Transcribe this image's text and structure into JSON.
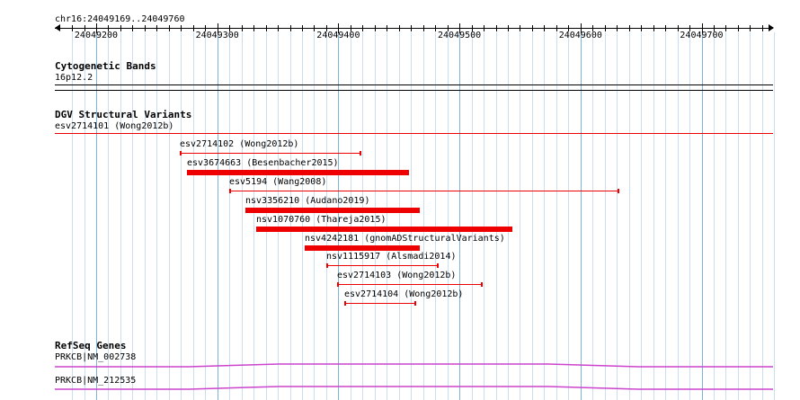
{
  "ruler": {
    "location": "chr16:24049169..24049760",
    "tick_labels": [
      "24049200",
      "24049300",
      "24049400",
      "24049500",
      "24049600",
      "24049700"
    ]
  },
  "cytobands": {
    "title": "Cytogenetic Bands",
    "label": "16p12.2"
  },
  "dgv": {
    "title": "DGV Structural Variants",
    "label": "esv2714101 (Wong2012b)",
    "color": "#ee0000",
    "features": [
      {
        "label": "esv2714102 (Wong2012b)",
        "start": 24049269,
        "end": 24049419,
        "style": "thin"
      },
      {
        "label": "esv3674663 (Besenbacher2015)",
        "start": 24049275,
        "end": 24049458,
        "style": "thick"
      },
      {
        "label": "esv5194 (Wang2008)",
        "start": 24049310,
        "end": 24049632,
        "style": "thin"
      },
      {
        "label": "nsv3356210 (Audano2019)",
        "start": 24049323,
        "end": 24049467,
        "style": "thick"
      },
      {
        "label": "nsv1070760 (Thareja2015)",
        "start": 24049332,
        "end": 24049544,
        "style": "thick"
      },
      {
        "label": "nsv4242181 (gnomADStructuralVariants)",
        "start": 24049372,
        "end": 24049467,
        "style": "thick"
      },
      {
        "label": "nsv1115917 (Alsmadi2014)",
        "start": 24049390,
        "end": 24049483,
        "style": "thin"
      },
      {
        "label": "esv2714103 (Wong2012b)",
        "start": 24049399,
        "end": 24049519,
        "style": "thin"
      },
      {
        "label": "esv2714104 (Wong2012b)",
        "start": 24049405,
        "end": 24049464,
        "style": "thin"
      }
    ]
  },
  "refseq": {
    "title": "RefSeq Genes",
    "color": "#cc44cc",
    "genes": [
      {
        "label": "PRKCB|NM_002738"
      },
      {
        "label": "PRKCB|NM_212535"
      }
    ]
  }
}
